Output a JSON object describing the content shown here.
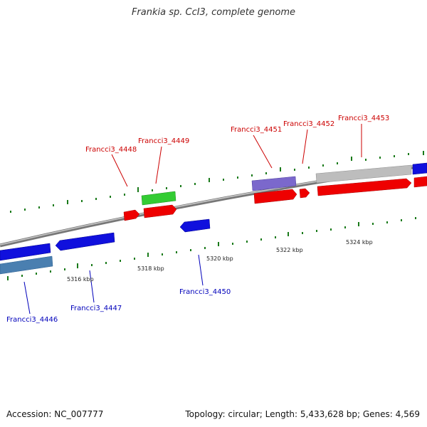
{
  "title": "Frankia sp. CcI3, complete genome",
  "footer": {
    "accession": "Accession: NC_007777",
    "summary": "Topology: circular; Length: 5,433,628 bp; Genes: 4,569"
  },
  "colors": {
    "backbone": "#8c8c8c",
    "cds_forward_red": "#ee0000",
    "cds_blue": "#1010dd",
    "gene_green": "#33cc33",
    "gene_purple": "#7b68cc",
    "gene_gray": "#bdbdbd",
    "gene_steelblue": "#4a7fb0",
    "tick_green": "#1a7a1a",
    "label_red": "#cc0000",
    "label_blue": "#0000bb"
  },
  "scale_labels": [
    "5316 kbp",
    "5318 kbp",
    "5320 kbp",
    "5322 kbp",
    "5324 kbp"
  ],
  "gene_labels_top": [
    "Francci3_4448",
    "Francci3_4449",
    "Francci3_4451",
    "Francci3_4452",
    "Francci3_4453"
  ],
  "gene_labels_bottom": [
    "Francci3_4446",
    "Francci3_4447",
    "Francci3_4450"
  ]
}
